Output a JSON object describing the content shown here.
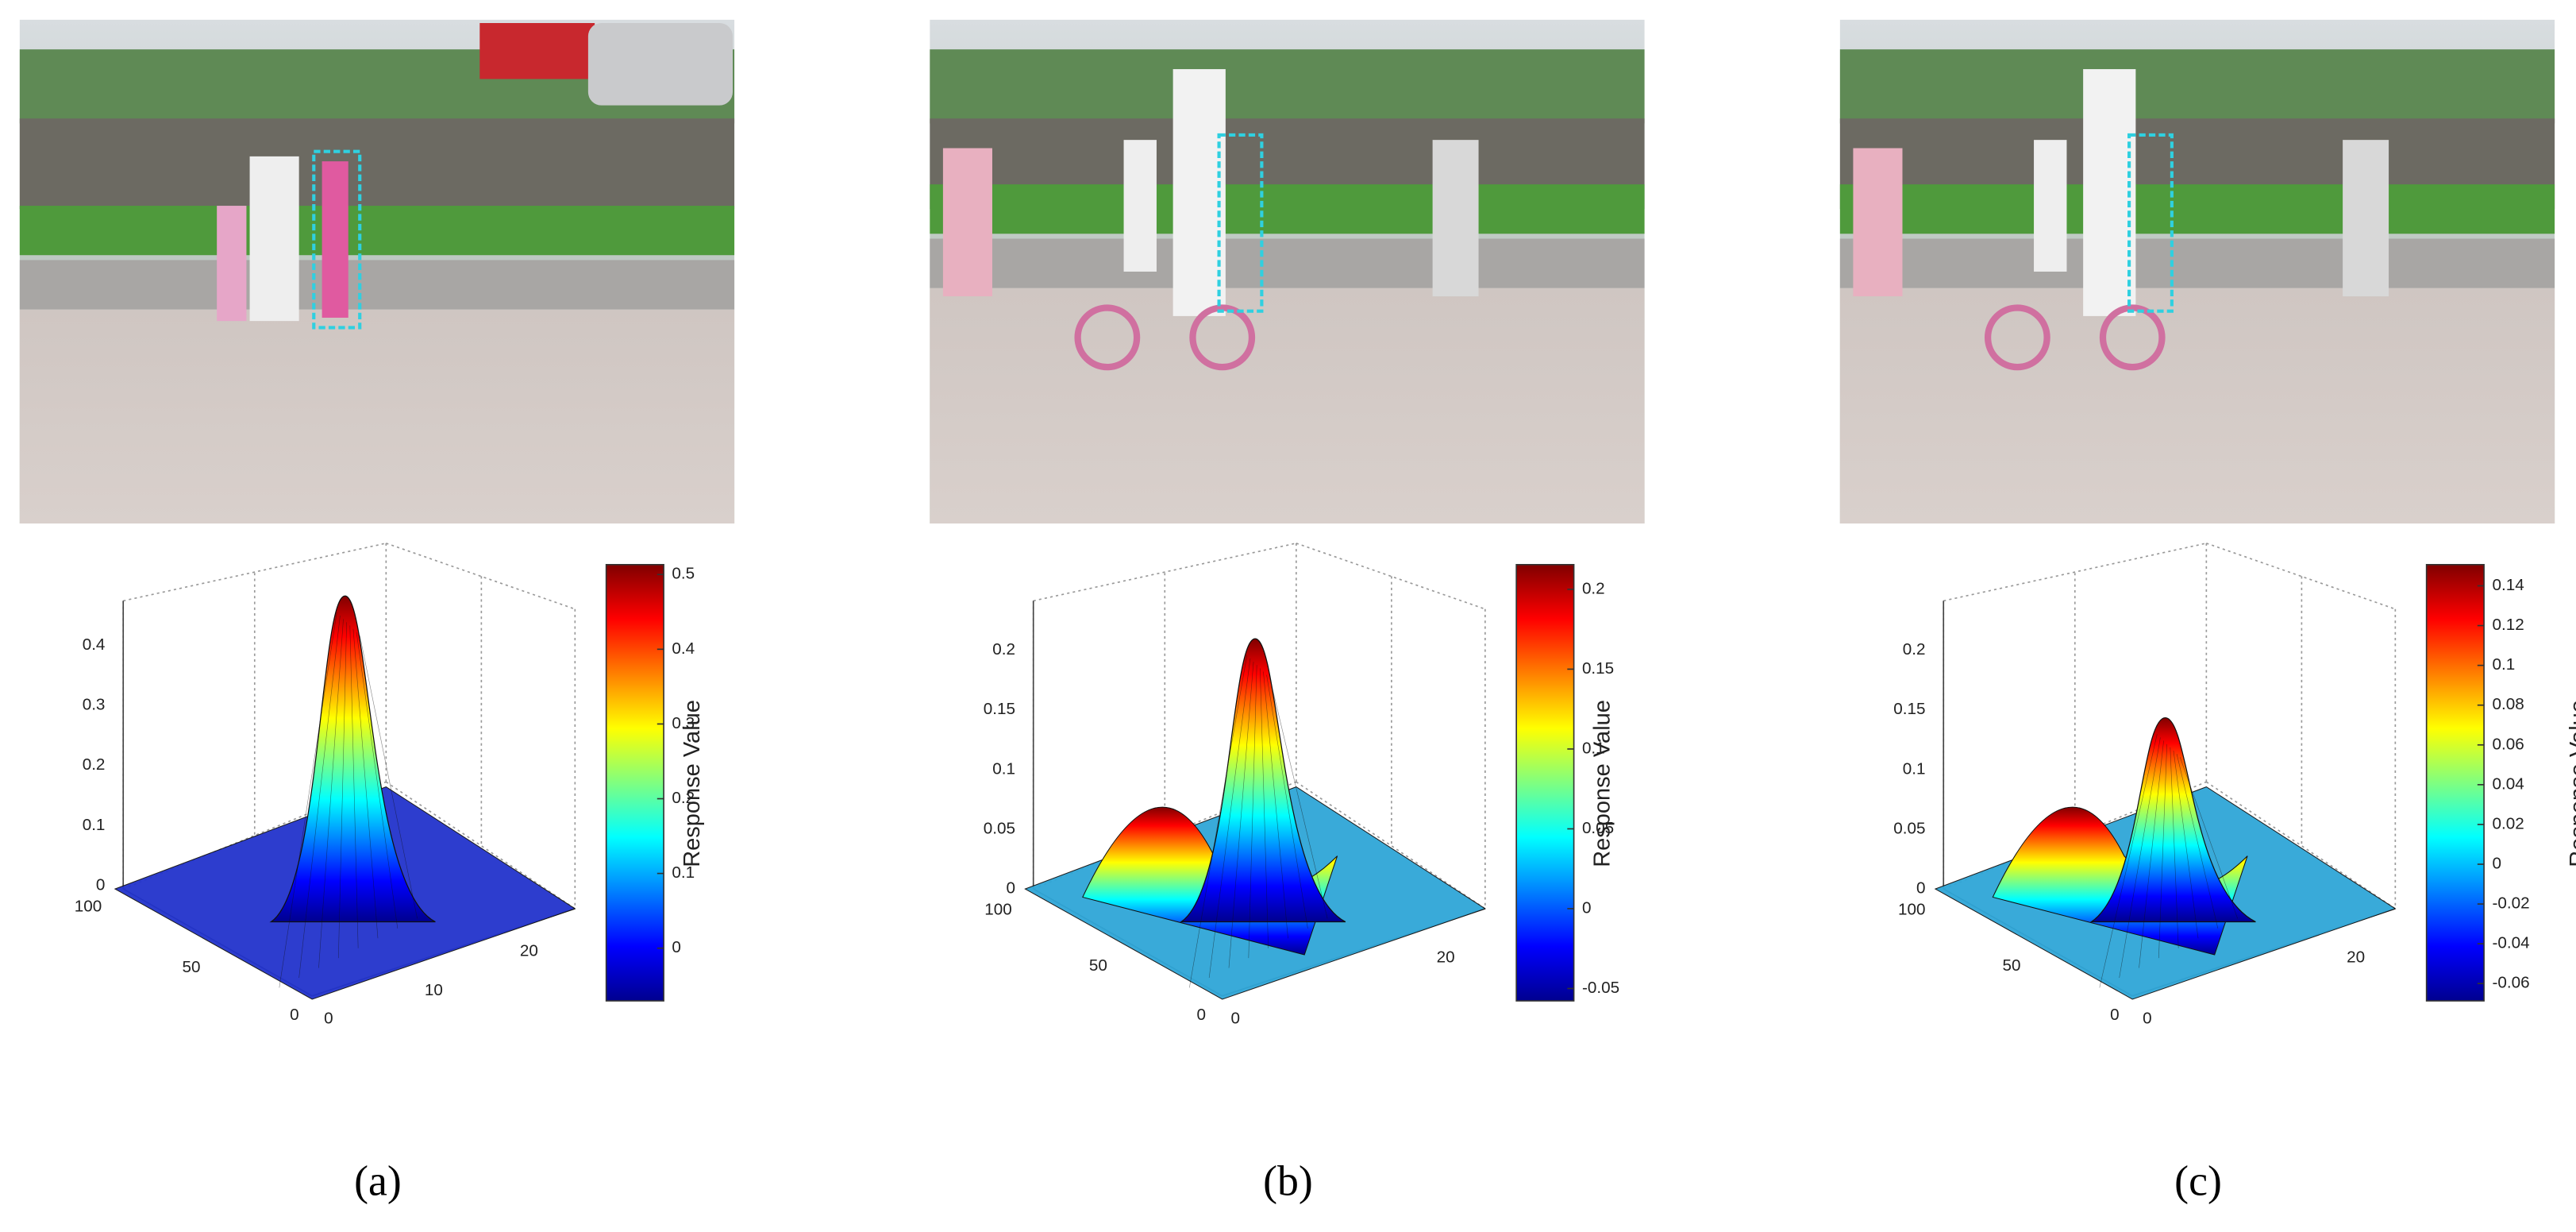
{
  "panels": [
    {
      "caption": "(a)",
      "z_ticks": [
        0.4,
        0.3,
        0.2,
        0.1,
        0
      ],
      "y_ticks": [
        100,
        50,
        0
      ],
      "x_ticks": [
        0,
        10,
        20
      ],
      "colorbar": {
        "label": "Response Value",
        "ticks": [
          0.5,
          0.4,
          0.3,
          0.2,
          0.1,
          0
        ]
      }
    },
    {
      "caption": "(b)",
      "z_ticks": [
        0.2,
        0.15,
        0.1,
        0.05,
        0
      ],
      "y_ticks": [
        100,
        50,
        0
      ],
      "x_ticks": [
        0,
        20
      ],
      "colorbar": {
        "label": "Response Value",
        "ticks": [
          0.2,
          0.15,
          0.1,
          0.05,
          0,
          -0.05
        ]
      }
    },
    {
      "caption": "(c)",
      "z_ticks": [
        0.2,
        0.15,
        0.1,
        0.05,
        0
      ],
      "y_ticks": [
        100,
        50,
        0
      ],
      "x_ticks": [
        0,
        20
      ],
      "colorbar": {
        "label": "Response Value",
        "ticks": [
          0.14,
          0.12,
          0.1,
          0.08,
          0.06,
          0.04,
          0.02,
          0,
          -0.02,
          -0.04,
          -0.06
        ]
      }
    }
  ]
}
